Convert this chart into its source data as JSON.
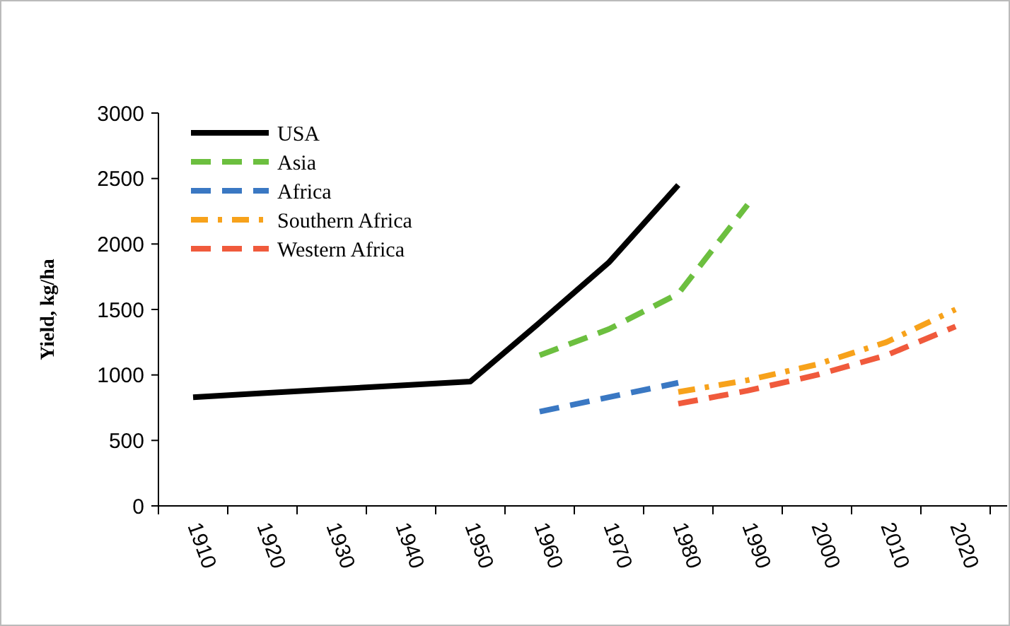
{
  "chart_data": {
    "type": "line",
    "ylabel": "Yield, kg/ha",
    "categories": [
      "1910",
      "1920",
      "1930",
      "1940",
      "1950",
      "1960",
      "1970",
      "1980",
      "1990",
      "2000",
      "2010",
      "2020"
    ],
    "series": [
      {
        "name": "USA",
        "color": "#000000",
        "line_style": "solid",
        "values": [
          830,
          860,
          890,
          920,
          950,
          1400,
          1860,
          2450,
          null,
          null,
          null,
          null
        ]
      },
      {
        "name": "Asia",
        "color": "#6cbf3f",
        "line_style": "dashed",
        "values": [
          null,
          null,
          null,
          null,
          null,
          1150,
          1350,
          1620,
          2300,
          null,
          null,
          null
        ]
      },
      {
        "name": "Africa",
        "color": "#3a78c3",
        "line_style": "dashed",
        "values": [
          null,
          null,
          null,
          null,
          null,
          720,
          830,
          940,
          null,
          null,
          null,
          null
        ]
      },
      {
        "name": "Southern Africa",
        "color": "#f7a21b",
        "line_style": "dotted",
        "values": [
          null,
          null,
          null,
          null,
          null,
          null,
          null,
          870,
          960,
          1080,
          1250,
          1500
        ]
      },
      {
        "name": "Western Africa",
        "color": "#f05a3c",
        "line_style": "dashed",
        "values": [
          null,
          null,
          null,
          null,
          null,
          null,
          null,
          780,
          880,
          1000,
          1150,
          1370
        ]
      }
    ],
    "ylim": [
      0,
      3000
    ],
    "yticks": [
      0,
      500,
      1000,
      1500,
      2000,
      2500,
      3000
    ],
    "grid": false,
    "legend": "top left"
  }
}
